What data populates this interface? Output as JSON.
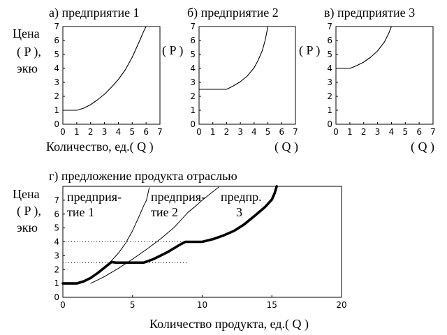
{
  "chart_data": [
    {
      "type": "line",
      "title": "а) предприятие 1",
      "ylabel": [
        "Цена",
        "( P ),",
        "экю"
      ],
      "xlabel": "Количество, ед.( Q )",
      "xlim": [
        0,
        7
      ],
      "ylim": [
        0,
        7
      ],
      "xticks": [
        "0",
        "1",
        "2",
        "3",
        "4",
        "5",
        "6",
        "7"
      ],
      "yticks": [
        "0",
        "1",
        "2",
        "3",
        "4",
        "5",
        "6",
        "7"
      ],
      "series": [
        {
          "x": [
            0,
            1,
            1.5,
            2,
            2.5,
            3,
            3.5,
            4,
            4.5,
            5,
            5.5,
            5.8,
            6
          ],
          "y": [
            1,
            1,
            1.15,
            1.4,
            1.75,
            2.15,
            2.65,
            3.2,
            3.9,
            4.8,
            5.9,
            6.6,
            7
          ]
        }
      ]
    },
    {
      "type": "line",
      "title": "б) предприятие 2",
      "ylabel": [
        "( P )"
      ],
      "xlabel": "( Q )",
      "xlim": [
        0,
        7
      ],
      "ylim": [
        0,
        7
      ],
      "xticks": [
        "0",
        "1",
        "2",
        "3",
        "4",
        "5",
        "6",
        "7"
      ],
      "yticks": [
        "0",
        "1",
        "2",
        "3",
        "4",
        "5",
        "6",
        "7"
      ],
      "series": [
        {
          "x": [
            0,
            2,
            2.5,
            3,
            3.5,
            4,
            4.3,
            4.6,
            4.8,
            4.9,
            5
          ],
          "y": [
            2.5,
            2.5,
            2.75,
            3.05,
            3.45,
            4.05,
            4.6,
            5.3,
            6,
            6.5,
            7
          ]
        }
      ]
    },
    {
      "type": "line",
      "title": "в) предприятие 3",
      "ylabel": [
        "( P )"
      ],
      "xlabel": "( Q )",
      "xlim": [
        0,
        7
      ],
      "ylim": [
        0,
        7
      ],
      "xticks": [
        "0",
        "1",
        "2",
        "3",
        "4",
        "5",
        "6",
        "7"
      ],
      "yticks": [
        "0",
        "1",
        "2",
        "3",
        "4",
        "5",
        "6",
        "7"
      ],
      "series": [
        {
          "x": [
            0,
            1,
            1.5,
            2,
            2.5,
            3,
            3.5,
            3.8,
            4
          ],
          "y": [
            4,
            4,
            4.2,
            4.45,
            4.8,
            5.25,
            5.9,
            6.5,
            7
          ]
        }
      ]
    },
    {
      "type": "line",
      "title": "г) предложение продукта отраслью",
      "ylabel": [
        "Цена",
        "( P ),",
        "экю"
      ],
      "xlabel": "Количество продукта, ед.( Q )",
      "xlim": [
        0,
        20
      ],
      "ylim": [
        0,
        8
      ],
      "xticks": [
        "0",
        "5",
        "10",
        "15",
        "20"
      ],
      "yticks": [
        "0",
        "1",
        "2",
        "3",
        "4",
        "5",
        "6",
        "7"
      ],
      "annotations": [
        {
          "lines": [
            "предприя-",
            "тие 1"
          ]
        },
        {
          "lines": [
            "предприя-",
            "тие 2"
          ]
        },
        {
          "lines": [
            "предпр.",
            "3"
          ]
        }
      ],
      "reference_lines_y": [
        2.5,
        4
      ],
      "series": [
        {
          "x": [
            0,
            1,
            1.5,
            2,
            2.5,
            3,
            3.5,
            4,
            4.5,
            5,
            5.5,
            5.8,
            6,
            6.2
          ],
          "y": [
            1,
            1,
            1.15,
            1.4,
            1.75,
            2.15,
            2.65,
            3.2,
            3.9,
            4.8,
            5.9,
            6.6,
            7,
            7.9
          ]
        },
        {
          "x": [
            2,
            3,
            4,
            5,
            6,
            7,
            8,
            8.5,
            9,
            9.5,
            10,
            10.5,
            11,
            11.2
          ],
          "y": [
            1,
            1.5,
            2.1,
            2.75,
            3.45,
            4.2,
            5.05,
            5.6,
            6.15,
            6.55,
            7.0,
            7.4,
            7.8,
            7.95
          ]
        },
        {
          "x": [
            0,
            1,
            1.5,
            2,
            2.5,
            3,
            3.5,
            3.8,
            5.8,
            6.5,
            7,
            7.5,
            8,
            8.5,
            8.8,
            10,
            10.8,
            11.5,
            12.3,
            13,
            13.8,
            14.5,
            15,
            15.2,
            15.35
          ],
          "y": [
            1,
            1,
            1.15,
            1.4,
            1.75,
            2.15,
            2.55,
            2.5,
            2.5,
            2.75,
            3.0,
            3.25,
            3.55,
            3.85,
            4.0,
            4.0,
            4.2,
            4.45,
            4.8,
            5.25,
            5.9,
            6.5,
            7.05,
            7.5,
            8
          ]
        }
      ]
    }
  ]
}
